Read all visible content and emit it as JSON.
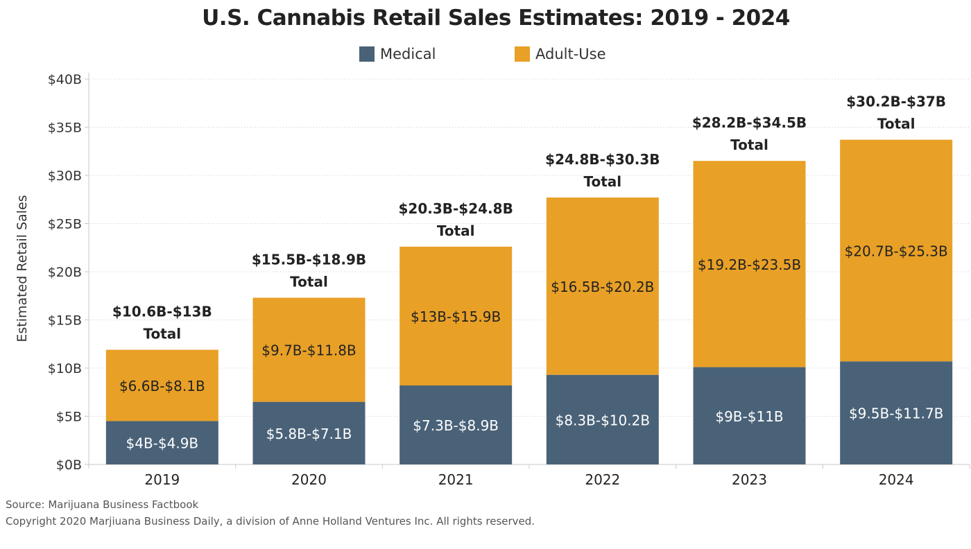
{
  "title": "U.S. Cannabis Retail Sales Estimates: 2019 - 2024",
  "legend": {
    "medical": "Medical",
    "adult_use": "Adult-Use"
  },
  "colors": {
    "medical": "#4a6278",
    "adult_use": "#e8a026",
    "axis": "#c8c8c8",
    "grid": "#c8c8c8"
  },
  "source": "Source: Marijuana Business Factbook",
  "copyright": "Copyright 2020 Marjiuana Business Daily, a division of Anne Holland Ventures Inc. All rights reserved.",
  "chart_data": {
    "type": "bar",
    "stacked": true,
    "categories": [
      "2019",
      "2020",
      "2021",
      "2022",
      "2023",
      "2024"
    ],
    "ylabel": "Estimated Retail Sales",
    "xlabel": "",
    "ylim": [
      0,
      40
    ],
    "yticks": [
      0,
      5,
      10,
      15,
      20,
      25,
      30,
      35,
      40
    ],
    "ytick_labels": [
      "$0B",
      "$5B",
      "$10B",
      "$15B",
      "$20B",
      "$25B",
      "$30B",
      "$35B",
      "$40B"
    ],
    "grid": "horizontal dotted",
    "legend_position": "top",
    "series": [
      {
        "name": "Medical",
        "values": [
          4.5,
          6.5,
          8.2,
          9.3,
          10.1,
          10.7
        ],
        "labels": [
          "$4B-$4.9B",
          "$5.8B-$7.1B",
          "$7.3B-$8.9B",
          "$8.3B-$10.2B",
          "$9B-$11B",
          "$9.5B-$11.7B"
        ]
      },
      {
        "name": "Adult-Use",
        "values": [
          7.4,
          10.8,
          14.4,
          18.4,
          21.4,
          23.0
        ],
        "labels": [
          "$6.6B-$8.1B",
          "$9.7B-$11.8B",
          "$13B-$15.9B",
          "$16.5B-$20.2B",
          "$19.2B-$23.5B",
          "$20.7B-$25.3B"
        ]
      }
    ],
    "total_labels": [
      "$10.6B-$13B",
      "$15.5B-$18.9B",
      "$20.3B-$24.8B",
      "$24.8B-$30.3B",
      "$28.2B-$34.5B",
      "$30.2B-$37B"
    ],
    "total_suffix": "Total"
  }
}
